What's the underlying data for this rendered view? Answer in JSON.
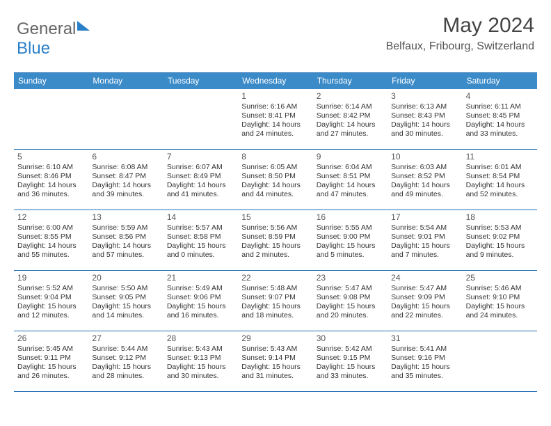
{
  "brand": {
    "part1": "General",
    "part2": "Blue"
  },
  "title": "May 2024",
  "location": "Belfaux, Fribourg, Switzerland",
  "colors": {
    "header_bg": "#3b8bc9",
    "header_border": "#1f6db3",
    "text": "#333333",
    "title_text": "#444444"
  },
  "dayNames": [
    "Sunday",
    "Monday",
    "Tuesday",
    "Wednesday",
    "Thursday",
    "Friday",
    "Saturday"
  ],
  "weeks": [
    [
      null,
      null,
      null,
      {
        "n": "1",
        "sr": "6:16 AM",
        "ss": "8:41 PM",
        "dl": "14 hours and 24 minutes."
      },
      {
        "n": "2",
        "sr": "6:14 AM",
        "ss": "8:42 PM",
        "dl": "14 hours and 27 minutes."
      },
      {
        "n": "3",
        "sr": "6:13 AM",
        "ss": "8:43 PM",
        "dl": "14 hours and 30 minutes."
      },
      {
        "n": "4",
        "sr": "6:11 AM",
        "ss": "8:45 PM",
        "dl": "14 hours and 33 minutes."
      }
    ],
    [
      {
        "n": "5",
        "sr": "6:10 AM",
        "ss": "8:46 PM",
        "dl": "14 hours and 36 minutes."
      },
      {
        "n": "6",
        "sr": "6:08 AM",
        "ss": "8:47 PM",
        "dl": "14 hours and 39 minutes."
      },
      {
        "n": "7",
        "sr": "6:07 AM",
        "ss": "8:49 PM",
        "dl": "14 hours and 41 minutes."
      },
      {
        "n": "8",
        "sr": "6:05 AM",
        "ss": "8:50 PM",
        "dl": "14 hours and 44 minutes."
      },
      {
        "n": "9",
        "sr": "6:04 AM",
        "ss": "8:51 PM",
        "dl": "14 hours and 47 minutes."
      },
      {
        "n": "10",
        "sr": "6:03 AM",
        "ss": "8:52 PM",
        "dl": "14 hours and 49 minutes."
      },
      {
        "n": "11",
        "sr": "6:01 AM",
        "ss": "8:54 PM",
        "dl": "14 hours and 52 minutes."
      }
    ],
    [
      {
        "n": "12",
        "sr": "6:00 AM",
        "ss": "8:55 PM",
        "dl": "14 hours and 55 minutes."
      },
      {
        "n": "13",
        "sr": "5:59 AM",
        "ss": "8:56 PM",
        "dl": "14 hours and 57 minutes."
      },
      {
        "n": "14",
        "sr": "5:57 AM",
        "ss": "8:58 PM",
        "dl": "15 hours and 0 minutes."
      },
      {
        "n": "15",
        "sr": "5:56 AM",
        "ss": "8:59 PM",
        "dl": "15 hours and 2 minutes."
      },
      {
        "n": "16",
        "sr": "5:55 AM",
        "ss": "9:00 PM",
        "dl": "15 hours and 5 minutes."
      },
      {
        "n": "17",
        "sr": "5:54 AM",
        "ss": "9:01 PM",
        "dl": "15 hours and 7 minutes."
      },
      {
        "n": "18",
        "sr": "5:53 AM",
        "ss": "9:02 PM",
        "dl": "15 hours and 9 minutes."
      }
    ],
    [
      {
        "n": "19",
        "sr": "5:52 AM",
        "ss": "9:04 PM",
        "dl": "15 hours and 12 minutes."
      },
      {
        "n": "20",
        "sr": "5:50 AM",
        "ss": "9:05 PM",
        "dl": "15 hours and 14 minutes."
      },
      {
        "n": "21",
        "sr": "5:49 AM",
        "ss": "9:06 PM",
        "dl": "15 hours and 16 minutes."
      },
      {
        "n": "22",
        "sr": "5:48 AM",
        "ss": "9:07 PM",
        "dl": "15 hours and 18 minutes."
      },
      {
        "n": "23",
        "sr": "5:47 AM",
        "ss": "9:08 PM",
        "dl": "15 hours and 20 minutes."
      },
      {
        "n": "24",
        "sr": "5:47 AM",
        "ss": "9:09 PM",
        "dl": "15 hours and 22 minutes."
      },
      {
        "n": "25",
        "sr": "5:46 AM",
        "ss": "9:10 PM",
        "dl": "15 hours and 24 minutes."
      }
    ],
    [
      {
        "n": "26",
        "sr": "5:45 AM",
        "ss": "9:11 PM",
        "dl": "15 hours and 26 minutes."
      },
      {
        "n": "27",
        "sr": "5:44 AM",
        "ss": "9:12 PM",
        "dl": "15 hours and 28 minutes."
      },
      {
        "n": "28",
        "sr": "5:43 AM",
        "ss": "9:13 PM",
        "dl": "15 hours and 30 minutes."
      },
      {
        "n": "29",
        "sr": "5:43 AM",
        "ss": "9:14 PM",
        "dl": "15 hours and 31 minutes."
      },
      {
        "n": "30",
        "sr": "5:42 AM",
        "ss": "9:15 PM",
        "dl": "15 hours and 33 minutes."
      },
      {
        "n": "31",
        "sr": "5:41 AM",
        "ss": "9:16 PM",
        "dl": "15 hours and 35 minutes."
      },
      null
    ]
  ],
  "labels": {
    "sunrise": "Sunrise: ",
    "sunset": "Sunset: ",
    "daylight": "Daylight: "
  }
}
